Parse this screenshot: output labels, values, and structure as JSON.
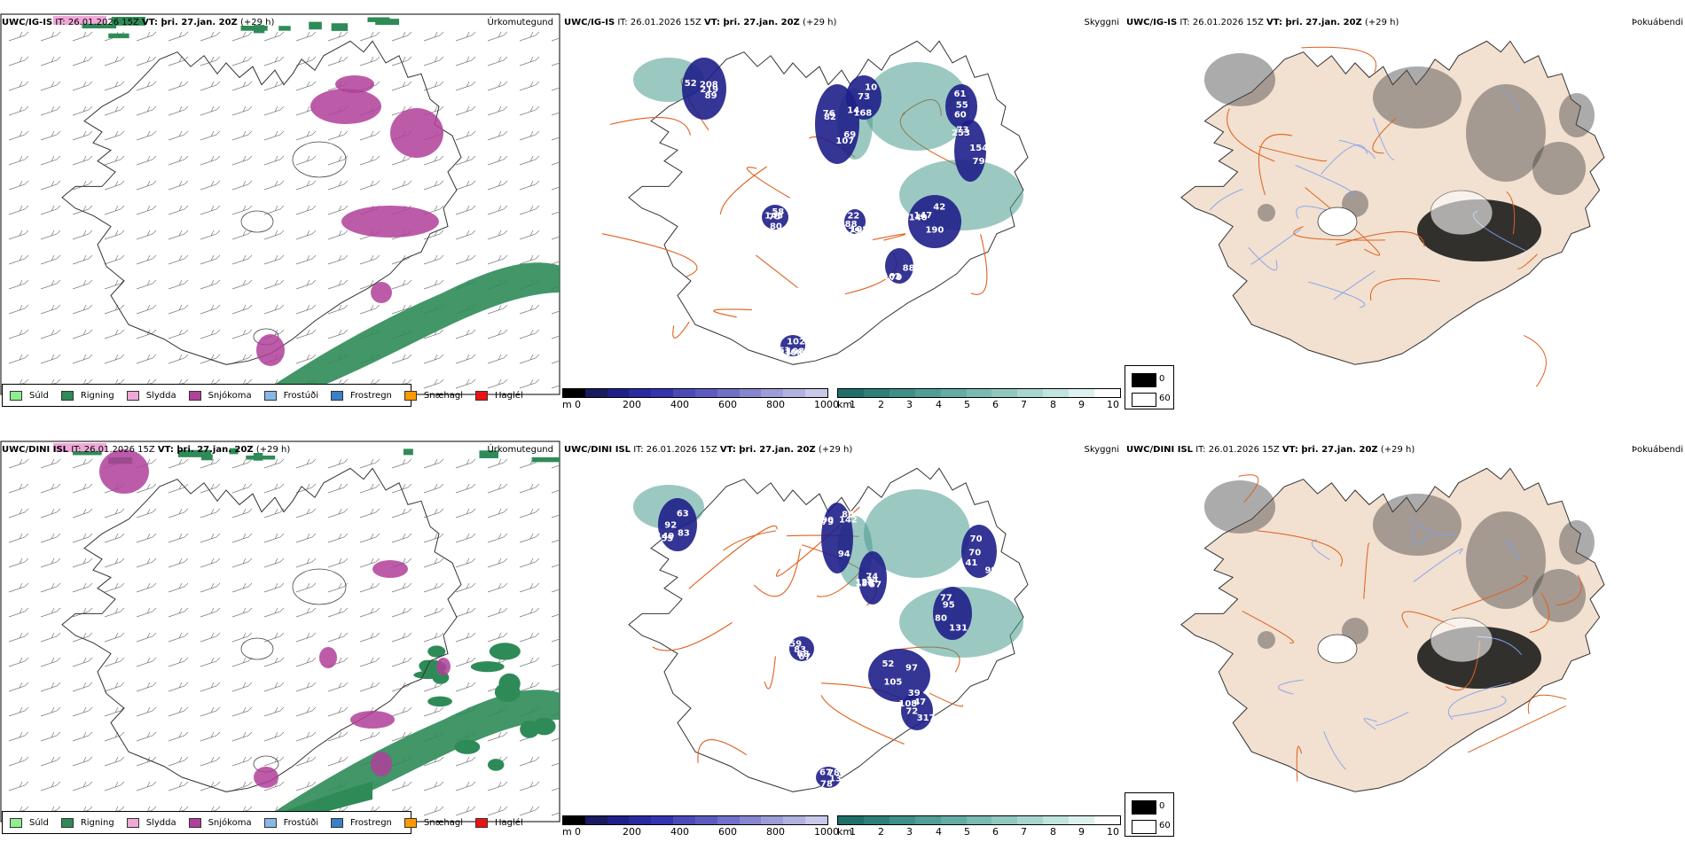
{
  "rows": [
    {
      "model": "UWC/IG-IS",
      "it_label": "IT:",
      "it_value": "26.01.2026 15Z",
      "vt_label": "VT:",
      "vt_value": "þri. 27.jan. 20Z",
      "lead": "(+29 h)",
      "map_labels": [
        "52",
        "76",
        "10",
        "73",
        "42",
        "22",
        "75",
        "61",
        "60",
        "79",
        "89",
        "82",
        "14",
        "253",
        "147",
        "188",
        "145",
        "108",
        "55",
        "162",
        "219",
        "69",
        "168",
        "154",
        "190",
        "108",
        "80",
        "108",
        "61",
        "88",
        "208",
        "107",
        "73",
        "79",
        "140",
        "79",
        "58",
        "102"
      ]
    },
    {
      "model": "UWC/DINI ISL",
      "it_label": "IT:",
      "it_value": "26.01.2026 15Z",
      "vt_label": "VT:",
      "vt_value": "þri. 27.jan. 20Z",
      "lead": "(+29 h)",
      "map_labels": [
        "149",
        "142",
        "74",
        "70",
        "95",
        "52",
        "59",
        "72",
        "67",
        "63",
        "79",
        "128",
        "70",
        "80",
        "39",
        "83",
        "47",
        "13",
        "92",
        "90",
        "57",
        "41",
        "131",
        "105",
        "68",
        "317",
        "78",
        "83",
        "80",
        "156",
        "99",
        "77",
        "97",
        "67",
        "108",
        "78",
        "55",
        "94",
        "34"
      ]
    }
  ],
  "panel_titles": {
    "precip": "Úrkomutegund",
    "visibility": "Skyggni",
    "fog": "Þokuábendi"
  },
  "precip_legend": [
    {
      "label": "Súld",
      "color": "#90ee90"
    },
    {
      "label": "Rigning",
      "color": "#2e8b57"
    },
    {
      "label": "Slydda",
      "color": "#f0a8d8"
    },
    {
      "label": "Snjókoma",
      "color": "#b0409a"
    },
    {
      "label": "Frostúði",
      "color": "#87b8e8"
    },
    {
      "label": "Frostregn",
      "color": "#3a7fc8"
    },
    {
      "label": "Snæhagl",
      "color": "#ff9900"
    },
    {
      "label": "Haglél",
      "color": "#ee1111"
    }
  ],
  "vis_colorbar_m": {
    "unit": "m",
    "ticks": [
      "0",
      "200",
      "400",
      "600",
      "800",
      "1000"
    ],
    "colors": [
      "#000000",
      "#1a1a5e",
      "#1f1f8a",
      "#2a2aa0",
      "#3434b0",
      "#4a4ab8",
      "#5c5cc0",
      "#7070c8",
      "#8686d0",
      "#9c9cd8",
      "#b2b2e0",
      "#c8c8ea"
    ]
  },
  "vis_colorbar_km": {
    "unit": "km",
    "ticks": [
      "1",
      "2",
      "3",
      "4",
      "5",
      "6",
      "7",
      "8",
      "9",
      "10"
    ],
    "colors": [
      "#1e6f6a",
      "#2e7f78",
      "#3e8f88",
      "#509e96",
      "#64aca4",
      "#7abab2",
      "#90c8c0",
      "#a8d6ce",
      "#c2e4de",
      "#ddf1ee",
      "#ffffff"
    ]
  },
  "fog_legend": [
    {
      "label": "0",
      "color": "#000000"
    },
    {
      "label": "60",
      "color": "#ffffff"
    }
  ],
  "colors": {
    "land_fog": "#f2e0d0",
    "roads": "#e0601c",
    "rivers": "#7fa0f0",
    "rain": "#2e8b57",
    "snow": "#b0409a",
    "sleet": "#f0a8d8",
    "vis_dark": "#1f1f8a",
    "vis_teal": "#4a9a90"
  }
}
